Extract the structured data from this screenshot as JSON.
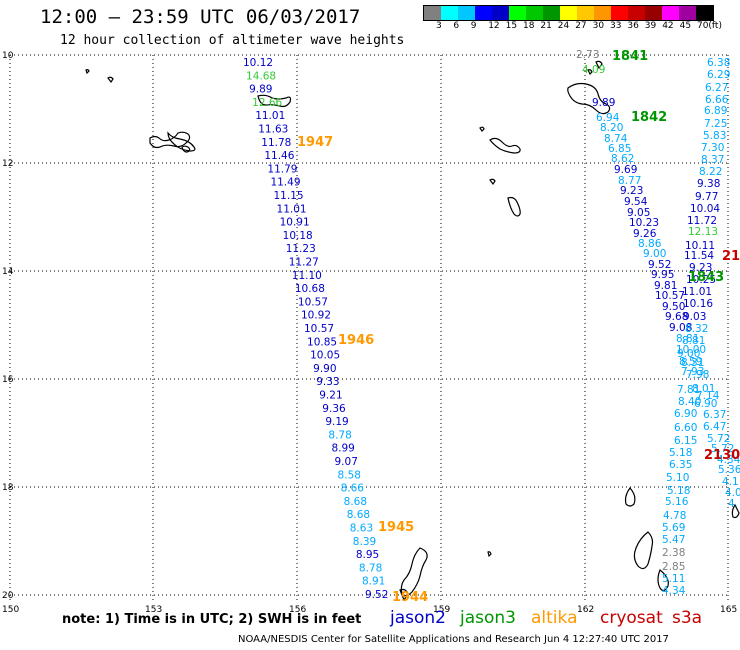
{
  "header": {
    "title": "12:00 – 23:59 UTC 06/03/2017",
    "subtitle": "12 hour collection of altimeter wave heights"
  },
  "legend": {
    "colors": [
      "#808080",
      "#00ffff",
      "#00c8ff",
      "#0000ff",
      "#0000c8",
      "#00ff00",
      "#00c800",
      "#009600",
      "#ffff00",
      "#ffc800",
      "#ff9600",
      "#ff0000",
      "#c80000",
      "#960000",
      "#ff00ff",
      "#a000a0",
      "#000000"
    ],
    "labels": [
      "3",
      "6",
      "9",
      "12",
      "15",
      "18",
      "21",
      "24",
      "27",
      "30",
      "33",
      "36",
      "39",
      "42",
      "45",
      "70",
      "(ft)"
    ]
  },
  "axes": {
    "lat_labels": [
      "10",
      "12",
      "14",
      "16",
      "18",
      "20"
    ],
    "lon_labels": [
      "150",
      "153",
      "156",
      "159",
      "162",
      "165"
    ]
  },
  "tracks": [
    {
      "sat": "jason2",
      "color": "#0000c8",
      "points": [
        [
          "10.12",
          0
        ],
        [
          "14.68",
          1,
          "#33cc33"
        ],
        [
          "9.89",
          0
        ],
        [
          "12.66",
          1,
          "#33cc33"
        ],
        [
          "11.01",
          0
        ],
        [
          "11.63",
          0
        ],
        [
          "11.78",
          0
        ],
        [
          "11.46",
          0
        ],
        [
          "11.79",
          0
        ],
        [
          "11.49",
          0
        ],
        [
          "11.15",
          0
        ],
        [
          "11.01",
          0
        ],
        [
          "10.91",
          0
        ],
        [
          "10.18",
          0
        ],
        [
          "11.23",
          0
        ],
        [
          "11.27",
          0
        ],
        [
          "11.10",
          0
        ],
        [
          "10.68",
          0
        ],
        [
          "10.57",
          0
        ],
        [
          "10.92",
          0
        ],
        [
          "10.57",
          0
        ],
        [
          "10.85",
          0
        ],
        [
          "10.05",
          0
        ],
        [
          "9.90",
          0
        ],
        [
          "9.33",
          0
        ],
        [
          "9.21",
          0
        ],
        [
          "9.36",
          0
        ],
        [
          "9.19",
          0
        ],
        [
          "8.78",
          1,
          "#00aaff"
        ],
        [
          "8.99",
          0
        ],
        [
          "9.07",
          0
        ],
        [
          "8.58",
          1,
          "#00aaff"
        ],
        [
          "8.66",
          1,
          "#00aaff"
        ],
        [
          "8.68",
          1,
          "#00aaff"
        ],
        [
          "8.68",
          1,
          "#00aaff"
        ],
        [
          "8.63",
          1,
          "#00aaff"
        ],
        [
          "8.39",
          1,
          "#00aaff"
        ],
        [
          "8.95",
          0
        ],
        [
          "8.78",
          1,
          "#00aaff"
        ],
        [
          "8.91",
          1,
          "#00aaff"
        ],
        [
          "9.52",
          0
        ]
      ]
    },
    {
      "sat": "jason2-east",
      "points": [
        [
          "2.73",
          "#808080"
        ],
        [
          "4.09",
          "#33cc33"
        ],
        [
          "9.89",
          "#0000c8"
        ],
        [
          "6.94",
          "#00aaff"
        ],
        [
          "8.20",
          "#00aaff"
        ],
        [
          "8.74",
          "#00aaff"
        ],
        [
          "6.85",
          "#00aaff"
        ],
        [
          "8.62",
          "#00aaff"
        ],
        [
          "9.69",
          "#0000c8"
        ],
        [
          "8.77",
          "#00aaff"
        ],
        [
          "9.23",
          "#0000c8"
        ],
        [
          "9.54",
          "#0000c8"
        ],
        [
          "9.05",
          "#0000c8"
        ],
        [
          "10.23",
          "#0000c8"
        ],
        [
          "9.26",
          "#0000c8"
        ],
        [
          "8.86",
          "#00aaff"
        ],
        [
          "9.00",
          "#00aaff"
        ],
        [
          "9.52",
          "#0000c8"
        ],
        [
          "9.95",
          "#0000c8"
        ],
        [
          "9.81",
          "#0000c8"
        ],
        [
          "10.57",
          "#0000c8"
        ],
        [
          "9.50",
          "#0000c8"
        ],
        [
          "9.68",
          "#0000c8"
        ],
        [
          "9.08",
          "#0000c8"
        ],
        [
          "8.81",
          "#00aaff"
        ],
        [
          "10.00",
          "#00aaff"
        ],
        [
          "8.59",
          "#00aaff"
        ],
        [
          "7.93",
          "#00aaff"
        ],
        [
          "7.81",
          "#00aaff"
        ],
        [
          "8.40",
          "#00aaff"
        ],
        [
          "6.90",
          "#00aaff"
        ],
        [
          "6.60",
          "#00aaff"
        ],
        [
          "6.15",
          "#00aaff"
        ],
        [
          "5.18",
          "#00aaff"
        ],
        [
          "6.35",
          "#00aaff"
        ],
        [
          "5.10",
          "#00aaff"
        ],
        [
          "5.18",
          "#00aaff"
        ],
        [
          "5.16",
          "#00aaff"
        ],
        [
          "4.78",
          "#00aaff"
        ],
        [
          "5.69",
          "#00aaff"
        ],
        [
          "5.47",
          "#00aaff"
        ],
        [
          "2.38",
          "#808080"
        ],
        [
          "2.85",
          "#808080"
        ],
        [
          "5.11",
          "#00aaff"
        ],
        [
          "4.34",
          "#00aaff"
        ]
      ]
    },
    {
      "sat": "far-east",
      "points": [
        [
          "6.38",
          "#00aaff"
        ],
        [
          "6.29",
          "#00aaff"
        ],
        [
          "6.27",
          "#00aaff"
        ],
        [
          "6.66",
          "#00aaff"
        ],
        [
          "6.89",
          "#00aaff"
        ],
        [
          "7.25",
          "#00aaff"
        ],
        [
          "5.83",
          "#00aaff"
        ],
        [
          "7.30",
          "#00aaff"
        ],
        [
          "8.37",
          "#00aaff"
        ],
        [
          "8.22",
          "#00aaff"
        ],
        [
          "9.38",
          "#0000c8"
        ],
        [
          "9.77",
          "#0000c8"
        ],
        [
          "10.04",
          "#0000c8"
        ],
        [
          "11.72",
          "#0000c8"
        ],
        [
          "12.13",
          "#33cc33"
        ],
        [
          "10.11",
          "#0000c8"
        ],
        [
          "11.54",
          "#0000c8"
        ],
        [
          "9.23",
          "#0000c8"
        ],
        [
          "10.25",
          "#0000c8"
        ],
        [
          "11.01",
          "#0000c8"
        ],
        [
          "10.16",
          "#0000c8"
        ],
        [
          "9.03",
          "#0000c8"
        ],
        [
          "8.32",
          "#00aaff"
        ],
        [
          "8.81",
          "#00aaff"
        ],
        [
          "9.00",
          "#00aaff"
        ],
        [
          "8.31",
          "#00aaff"
        ],
        [
          "7.98",
          "#00aaff"
        ],
        [
          "8.01",
          "#00aaff"
        ],
        [
          "7.14",
          "#00aaff"
        ],
        [
          "6.90",
          "#00aaff"
        ],
        [
          "6.37",
          "#00aaff"
        ],
        [
          "6.47",
          "#00aaff"
        ],
        [
          "5.72",
          "#00aaff"
        ],
        [
          "5.72",
          "#00aaff"
        ],
        [
          "4.34",
          "#00aaff"
        ],
        [
          "5.36",
          "#00aaff"
        ],
        [
          "4.1",
          "#00aaff"
        ],
        [
          "4.0",
          "#00aaff"
        ],
        [
          "4.",
          "#00aaff"
        ]
      ]
    }
  ],
  "time_labels": [
    {
      "text": "1947",
      "color": "#ff9900"
    },
    {
      "text": "1946",
      "color": "#ff9900"
    },
    {
      "text": "1945",
      "color": "#ff9900"
    },
    {
      "text": "1944",
      "color": "#ff9900"
    },
    {
      "text": "1841",
      "color": "#009600"
    },
    {
      "text": "1842",
      "color": "#009600"
    },
    {
      "text": "1843",
      "color": "#009600"
    },
    {
      "text": "21",
      "color": "#c80000"
    },
    {
      "text": "2130",
      "color": "#c80000"
    }
  ],
  "footer": {
    "note": "note: 1) Time is in UTC; 2) SWH is in feet",
    "satellites": [
      {
        "name": "jason2",
        "color": "#0000c8"
      },
      {
        "name": "jason3",
        "color": "#009600"
      },
      {
        "name": "altika",
        "color": "#ff9900"
      },
      {
        "name": "cryosat",
        "color": "#c80000"
      },
      {
        "name": "s3a",
        "color": "#c80000"
      }
    ],
    "credit": "NOAA/NESDIS Center for Satellite Applications and Research   Jun  4 12:27:40 UTC 2017"
  }
}
